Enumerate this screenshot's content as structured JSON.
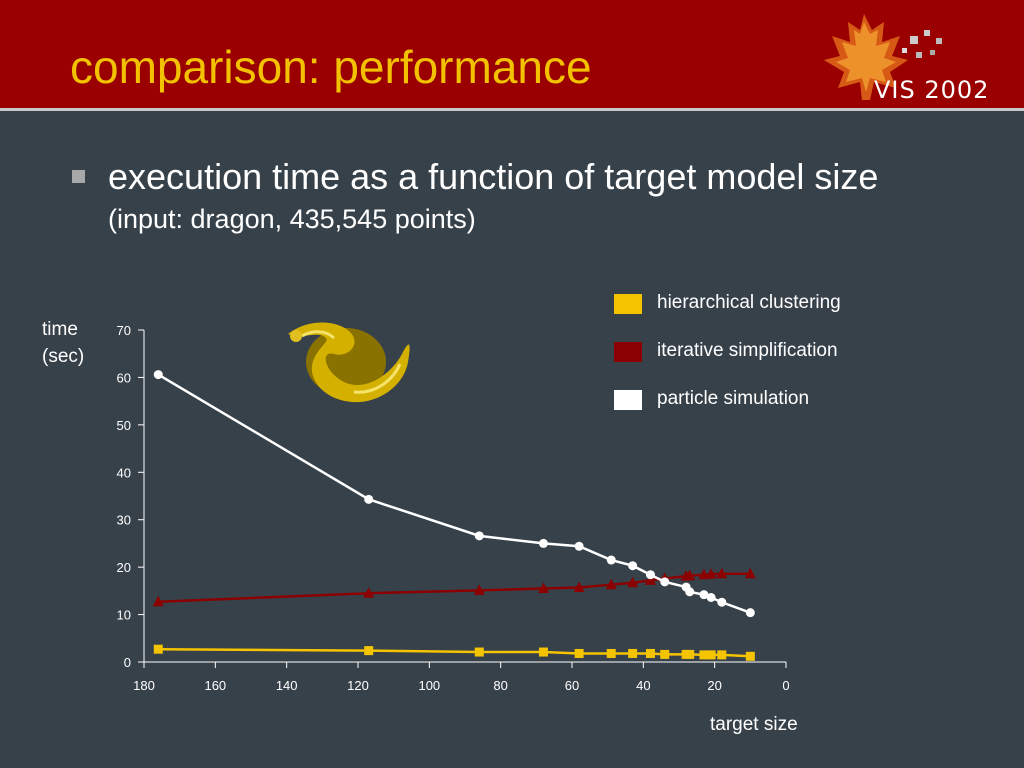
{
  "slide": {
    "title": "comparison: performance",
    "bullet": "execution time as a function of target model size",
    "bullet_sub": "(input: dragon, 435,545 points)",
    "logo_text": "VIS 2002",
    "colors": {
      "header": "#9a0000",
      "background": "#37414a",
      "title": "#f2c200"
    }
  },
  "chart_data": {
    "type": "line",
    "title": "",
    "xlabel": "target size",
    "ylabel_lines": [
      "time",
      "(sec)"
    ],
    "xlim": [
      180,
      0
    ],
    "ylim": [
      0,
      70
    ],
    "x_reversed": true,
    "xticks": [
      180,
      160,
      140,
      120,
      100,
      80,
      60,
      40,
      20,
      0
    ],
    "yticks": [
      0,
      10,
      20,
      30,
      40,
      50,
      60,
      70
    ],
    "grid": false,
    "legend_position": "top-right",
    "series": [
      {
        "name": "hierarchical clustering",
        "color": "#f5c400",
        "marker": "square",
        "points": [
          [
            176,
            2.7
          ],
          [
            117,
            2.4
          ],
          [
            86,
            2.1
          ],
          [
            68,
            2.1
          ],
          [
            58,
            1.8
          ],
          [
            49,
            1.8
          ],
          [
            43,
            1.8
          ],
          [
            38,
            1.8
          ],
          [
            34,
            1.6
          ],
          [
            28,
            1.6
          ],
          [
            27,
            1.6
          ],
          [
            23,
            1.5
          ],
          [
            21,
            1.5
          ],
          [
            18,
            1.5
          ],
          [
            10,
            1.2
          ]
        ]
      },
      {
        "name": "iterative simplification",
        "color": "#8b0000",
        "marker": "triangle",
        "points": [
          [
            176,
            12.7
          ],
          [
            117,
            14.5
          ],
          [
            86,
            15.1
          ],
          [
            68,
            15.5
          ],
          [
            58,
            15.7
          ],
          [
            49,
            16.3
          ],
          [
            43,
            16.7
          ],
          [
            38,
            17.2
          ],
          [
            34,
            17.6
          ],
          [
            28,
            18.1
          ],
          [
            27,
            18.2
          ],
          [
            23,
            18.4
          ],
          [
            21,
            18.5
          ],
          [
            18,
            18.6
          ],
          [
            10,
            18.6
          ]
        ]
      },
      {
        "name": "particle simulation",
        "color": "#ffffff",
        "marker": "circle",
        "points": [
          [
            176,
            60.6
          ],
          [
            117,
            34.3
          ],
          [
            86,
            26.6
          ],
          [
            68,
            25.0
          ],
          [
            58,
            24.4
          ],
          [
            49,
            21.5
          ],
          [
            43,
            20.3
          ],
          [
            38,
            18.4
          ],
          [
            34,
            16.9
          ],
          [
            28,
            15.8
          ],
          [
            27,
            14.8
          ],
          [
            23,
            14.2
          ],
          [
            21,
            13.6
          ],
          [
            18,
            12.6
          ],
          [
            10,
            10.4
          ]
        ]
      }
    ]
  }
}
